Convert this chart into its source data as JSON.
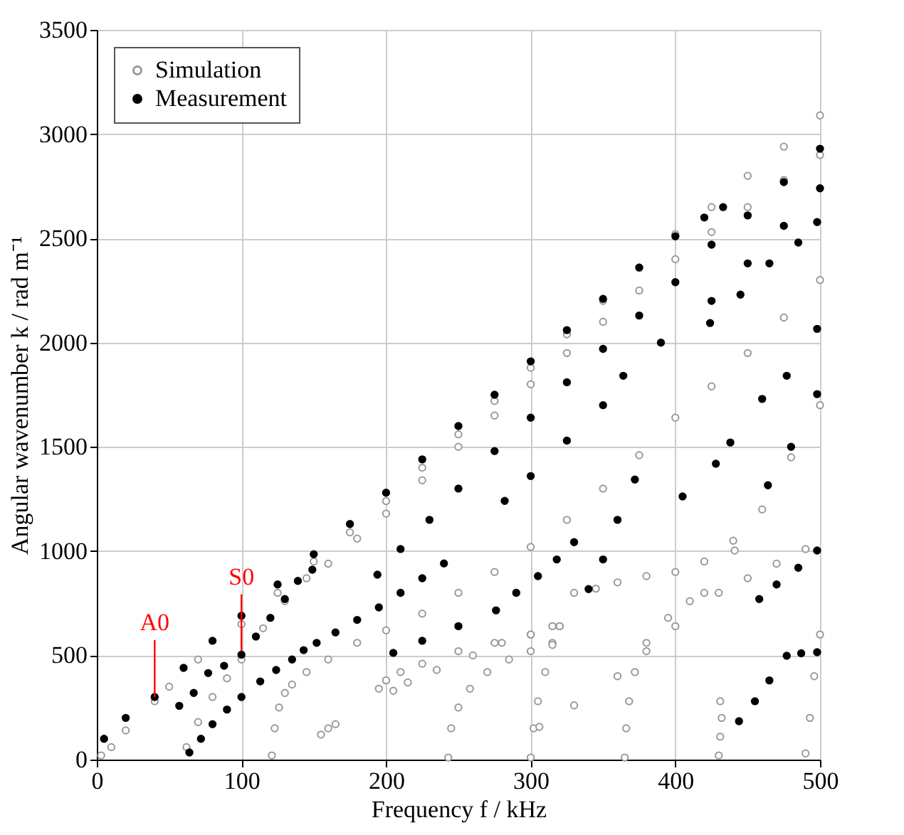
{
  "chart_data": {
    "type": "scatter",
    "xlabel": "Frequency f / kHz",
    "ylabel": "Angular wavenumber k / rad m⁻¹",
    "xlim": [
      0,
      500
    ],
    "ylim": [
      0,
      3500
    ],
    "xticks": [
      0,
      100,
      200,
      300,
      400,
      500
    ],
    "yticks": [
      0,
      500,
      1000,
      1500,
      2000,
      2500,
      3000,
      3500
    ],
    "grid": true,
    "legend": "top left",
    "annotations": [
      {
        "text": "A0",
        "x": 40,
        "y": 300
      },
      {
        "text": "S0",
        "x": 100,
        "y": 520
      }
    ],
    "series": [
      {
        "name": "Simulation",
        "color": "#999999",
        "marker": "circle",
        "x": [
          3,
          10,
          20,
          40,
          50,
          70,
          100,
          125,
          150,
          175,
          200,
          225,
          250,
          275,
          300,
          325,
          350,
          375,
          400,
          425,
          450,
          475,
          500,
          62,
          70,
          80,
          90,
          100,
          115,
          130,
          145,
          160,
          180,
          200,
          225,
          250,
          275,
          300,
          325,
          350,
          375,
          400,
          425,
          450,
          475,
          500,
          121,
          123,
          126,
          130,
          135,
          145,
          160,
          180,
          200,
          225,
          250,
          275,
          300,
          325,
          350,
          375,
          400,
          425,
          450,
          475,
          500,
          155,
          160,
          165,
          195,
          200,
          210,
          225,
          250,
          275,
          300,
          315,
          243,
          245,
          250,
          258,
          270,
          285,
          300,
          315,
          205,
          215,
          235,
          260,
          280,
          300,
          320,
          300,
          302,
          305,
          310,
          315,
          320,
          306,
          330,
          360,
          380,
          400,
          420,
          441,
          365,
          366,
          368,
          372,
          380,
          395,
          410,
          430,
          450,
          470,
          490,
          330,
          345,
          360,
          380,
          400,
          420,
          440,
          460,
          480,
          500,
          430,
          431,
          432,
          431,
          490,
          493,
          496,
          500
        ],
        "values": [
          20,
          60,
          140,
          280,
          350,
          480,
          650,
          800,
          950,
          1090,
          1240,
          1400,
          1560,
          1720,
          1880,
          2040,
          2200,
          2360,
          2520,
          2650,
          2800,
          2940,
          3090,
          60,
          180,
          300,
          390,
          480,
          630,
          760,
          870,
          940,
          1060,
          1180,
          1340,
          1500,
          1650,
          1800,
          1950,
          2100,
          2250,
          2400,
          2530,
          2650,
          2780,
          2900,
          20,
          150,
          250,
          320,
          360,
          420,
          480,
          560,
          620,
          700,
          800,
          900,
          1020,
          1150,
          1300,
          1460,
          1640,
          1790,
          1950,
          2120,
          2300,
          120,
          150,
          170,
          340,
          380,
          420,
          460,
          520,
          560,
          600,
          640,
          10,
          150,
          250,
          340,
          420,
          480,
          520,
          560,
          330,
          370,
          430,
          500,
          560,
          600,
          640,
          10,
          150,
          280,
          420,
          550,
          640,
          157,
          260,
          400,
          520,
          640,
          800,
          1003,
          10,
          150,
          280,
          420,
          560,
          680,
          760,
          800,
          870,
          940,
          1010,
          800,
          820,
          850,
          880,
          900,
          950,
          1050,
          1200,
          1450,
          1700,
          20,
          110,
          200,
          280,
          30,
          200,
          400,
          600
        ]
      },
      {
        "name": "Measurement",
        "color": "#000000",
        "marker": "circle",
        "x": [
          5,
          20,
          40,
          60,
          80,
          100,
          125,
          150,
          175,
          200,
          225,
          250,
          275,
          300,
          325,
          350,
          375,
          400,
          420,
          433,
          57,
          67,
          77,
          88,
          100,
          110,
          120,
          130,
          139,
          149,
          194,
          210,
          230,
          250,
          275,
          300,
          325,
          350,
          375,
          400,
          425,
          450,
          475,
          500,
          64,
          72,
          80,
          90,
          100,
          113,
          124,
          135,
          143,
          152,
          165,
          180,
          195,
          210,
          225,
          240,
          205,
          225,
          250,
          276,
          290,
          305,
          318,
          330,
          282,
          300,
          325,
          350,
          364,
          390,
          425,
          450,
          475,
          500,
          340,
          350,
          360,
          372,
          405,
          428,
          424,
          445,
          465,
          485,
          498,
          438,
          460,
          477,
          498,
          464,
          480,
          498,
          458,
          470,
          485,
          498,
          444,
          455,
          465,
          477,
          487,
          498
        ],
        "values": [
          100,
          200,
          300,
          440,
          570,
          690,
          840,
          985,
          1130,
          1280,
          1440,
          1600,
          1750,
          1910,
          2060,
          2210,
          2360,
          2510,
          2600,
          2650,
          258,
          320,
          415,
          450,
          503,
          590,
          680,
          770,
          857,
          911,
          887,
          1010,
          1150,
          1300,
          1480,
          1640,
          1810,
          1970,
          2130,
          2290,
          2470,
          2610,
          2770,
          2930,
          34,
          100,
          170,
          240,
          300,
          375,
          430,
          480,
          525,
          560,
          610,
          670,
          730,
          800,
          870,
          941,
          512,
          570,
          640,
          716,
          800,
          880,
          960,
          1043,
          1241,
          1360,
          1530,
          1700,
          1841,
          2000,
          2200,
          2380,
          2560,
          2740,
          818,
          960,
          1150,
          1343,
          1262,
          1419,
          2094,
          2230,
          2380,
          2480,
          2578,
          1521,
          1730,
          1841,
          2066,
          1316,
          1500,
          1753,
          770,
          840,
          920,
          1003,
          184,
          280,
          380,
          498,
          510,
          515
        ]
      }
    ]
  }
}
